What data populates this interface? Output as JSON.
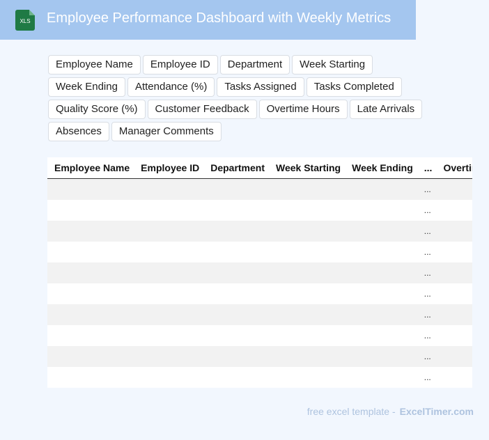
{
  "header": {
    "icon": "XLS",
    "title": "Employee Performance Dashboard with Weekly Metrics"
  },
  "tags": [
    "Employee Name",
    "Employee ID",
    "Department",
    "Week Starting",
    "Week Ending",
    "Attendance (%)",
    "Tasks Assigned",
    "Tasks Completed",
    "Quality Score (%)",
    "Customer Feedback",
    "Overtime Hours",
    "Late Arrivals",
    "Absences",
    "Manager Comments"
  ],
  "table": {
    "columns": [
      "Employee Name",
      "Employee ID",
      "Department",
      "Week Starting",
      "Week Ending",
      "...",
      "Overtime Hours"
    ],
    "rows": [
      "...",
      "...",
      "...",
      "...",
      "...",
      "...",
      "...",
      "...",
      "...",
      "..."
    ]
  },
  "footer": {
    "text": "free excel template -",
    "link": "ExcelTimer.com"
  }
}
